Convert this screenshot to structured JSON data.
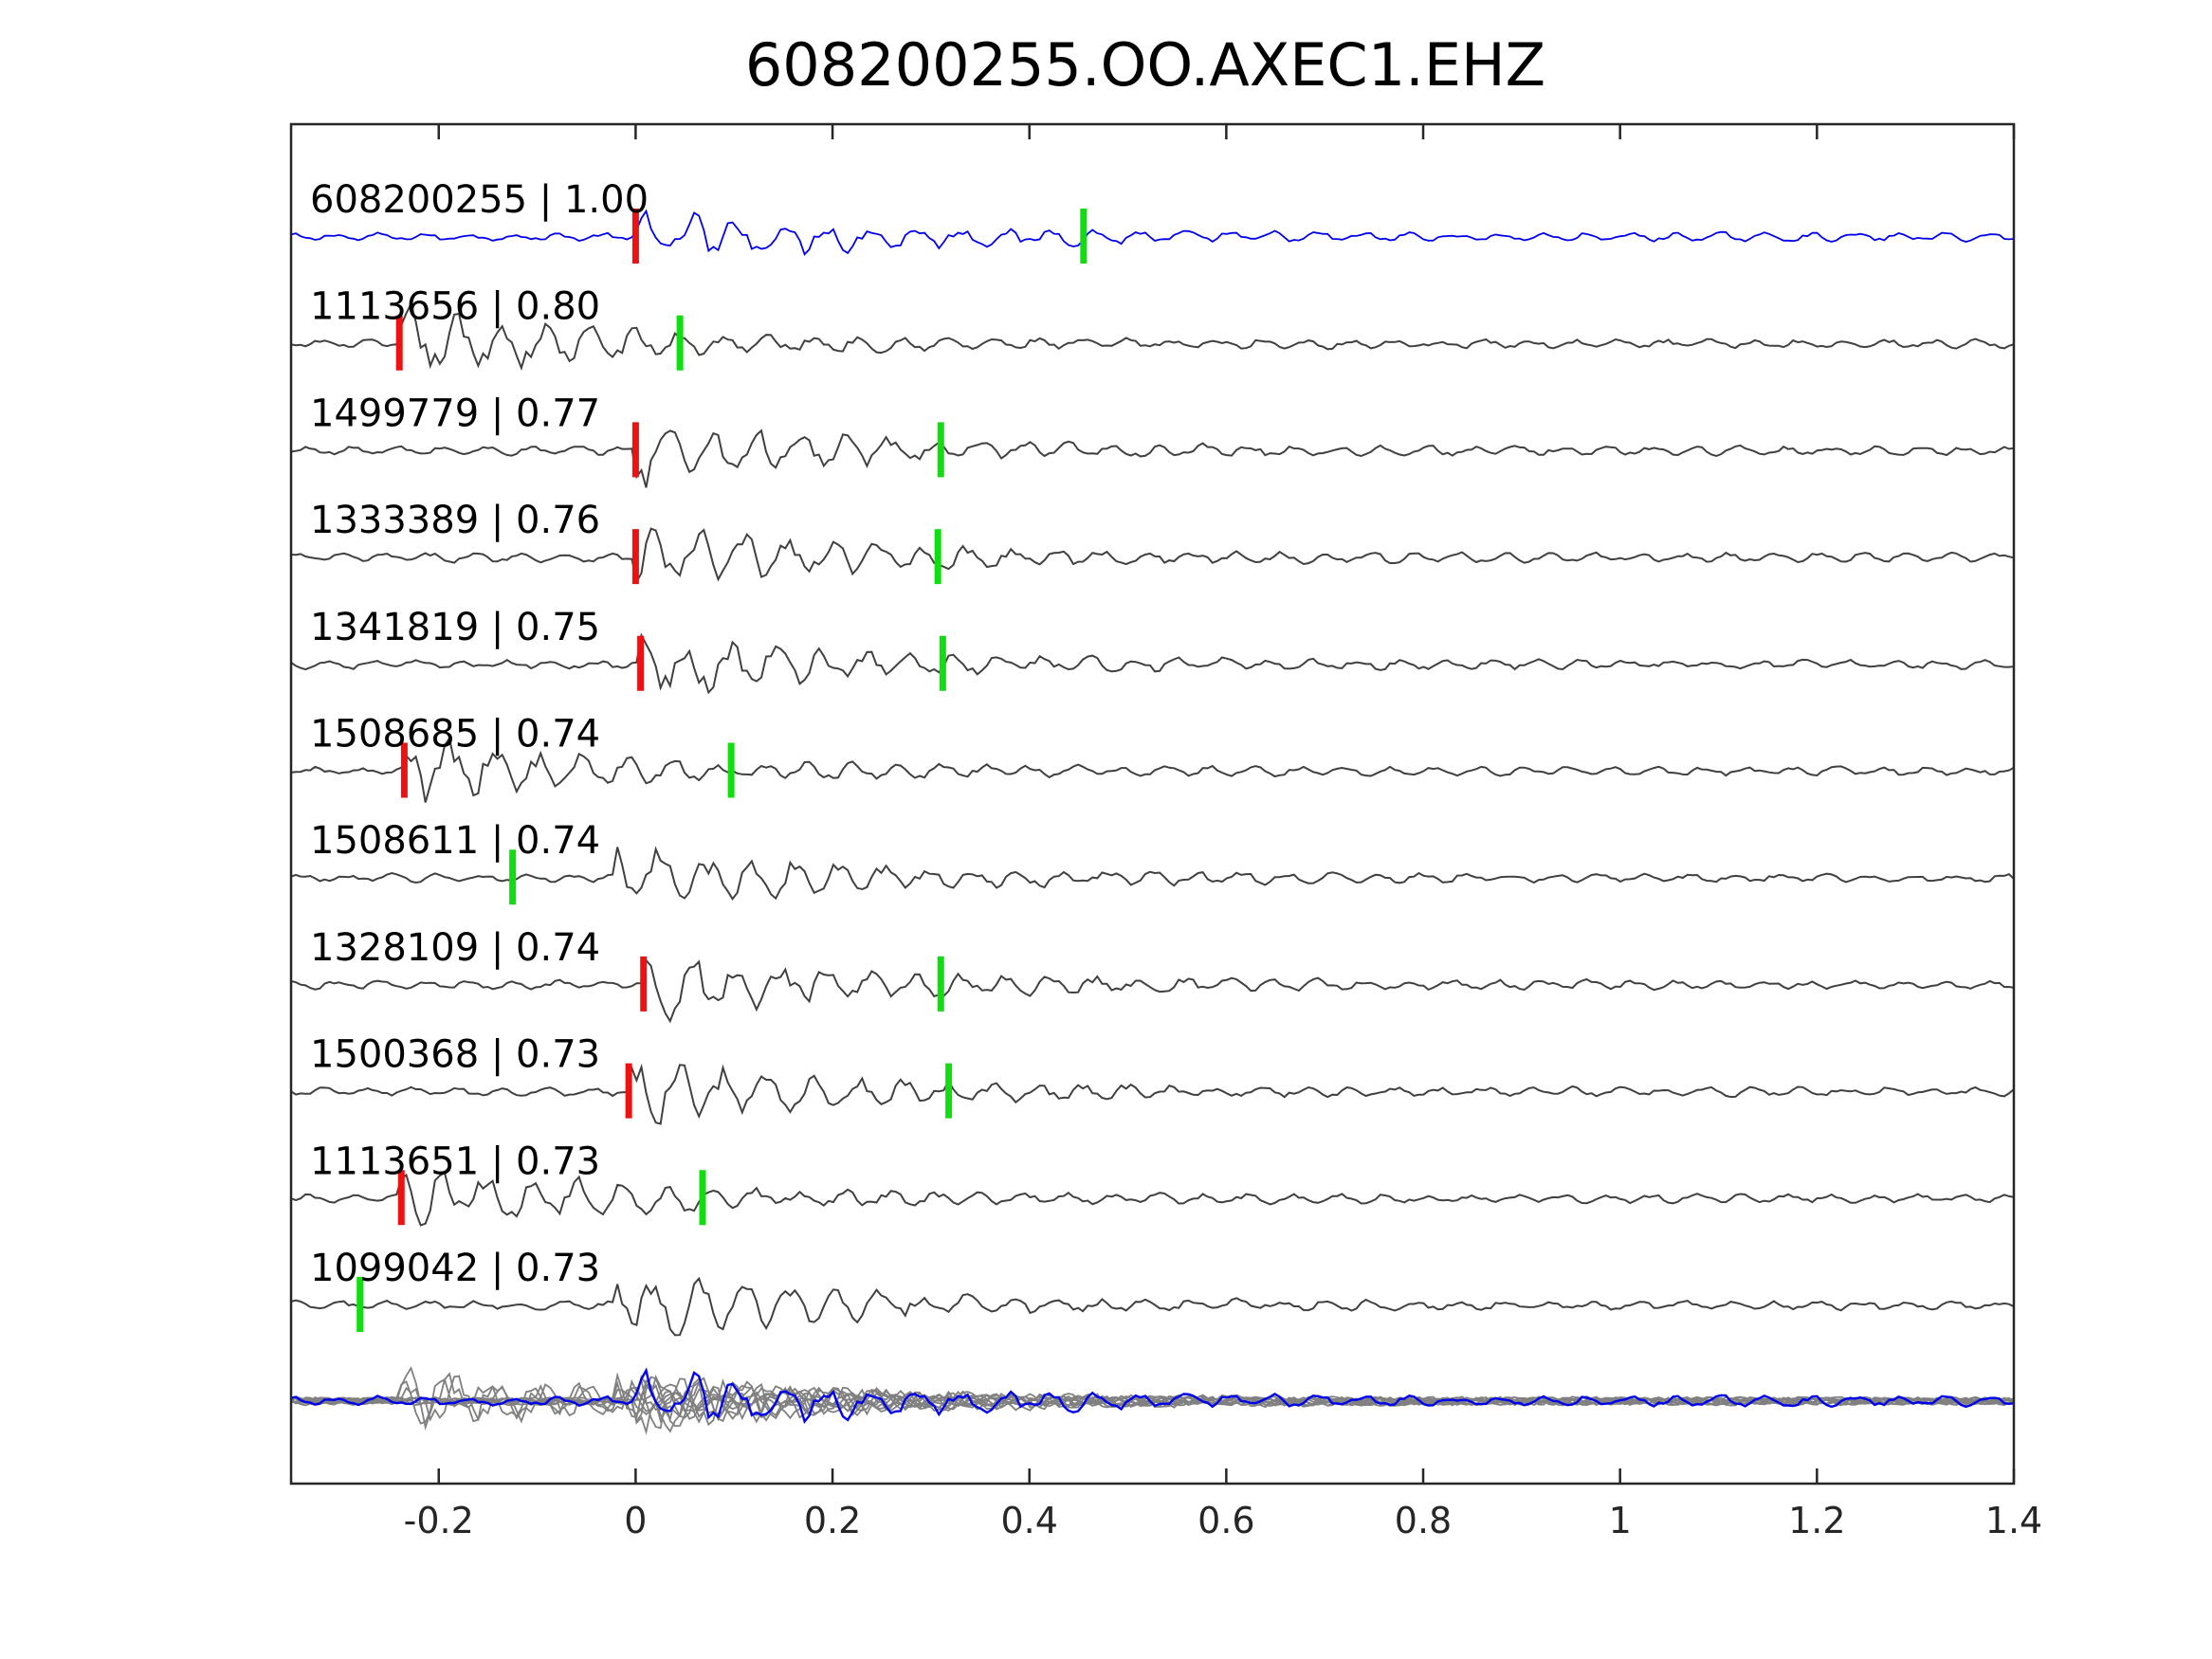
{
  "chart_data": {
    "type": "line",
    "title": "608200255.OO.AXEC1.EHZ",
    "xlabel": "",
    "ylabel": "",
    "xlim": [
      -0.35,
      1.4
    ],
    "xticks": [
      -0.2,
      0,
      0.2,
      0.4,
      0.6,
      0.8,
      1,
      1.2,
      1.4
    ],
    "xtick_labels": [
      "-0.2",
      "0",
      "0.2",
      "0.4",
      "0.6",
      "0.8",
      "1",
      "1.2",
      "1.4"
    ],
    "grid": false,
    "traces": [
      {
        "label": "608200255 | 1.00",
        "color": "#0000ee",
        "red_pick": 0.0,
        "green_pick": 0.455
      },
      {
        "label": "1113656 | 0.80",
        "color": "#404040",
        "red_pick": -0.24,
        "green_pick": 0.045
      },
      {
        "label": "1499779 | 0.77",
        "color": "#404040",
        "red_pick": 0.0,
        "green_pick": 0.31
      },
      {
        "label": "1333389 | 0.76",
        "color": "#404040",
        "red_pick": 0.0,
        "green_pick": 0.307
      },
      {
        "label": "1341819 | 0.75",
        "color": "#404040",
        "red_pick": 0.005,
        "green_pick": 0.312
      },
      {
        "label": "1508685 | 0.74",
        "color": "#404040",
        "red_pick": -0.235,
        "green_pick": 0.097
      },
      {
        "label": "1508611 | 0.74",
        "color": "#404040",
        "red_pick": null,
        "green_pick": -0.125
      },
      {
        "label": "1328109 | 0.74",
        "color": "#404040",
        "red_pick": 0.008,
        "green_pick": 0.31
      },
      {
        "label": "1500368 | 0.73",
        "color": "#404040",
        "red_pick": -0.007,
        "green_pick": 0.318
      },
      {
        "label": "1113651 | 0.73",
        "color": "#404040",
        "red_pick": -0.238,
        "green_pick": 0.068
      },
      {
        "label": "1099042 | 0.73",
        "color": "#404040",
        "red_pick": null,
        "green_pick": -0.28
      }
    ],
    "stack": {
      "template_color": "#0000ee",
      "overlay_color": "#808080"
    },
    "pick_colors": {
      "red": "#ee1111",
      "green": "#11dd11"
    }
  }
}
